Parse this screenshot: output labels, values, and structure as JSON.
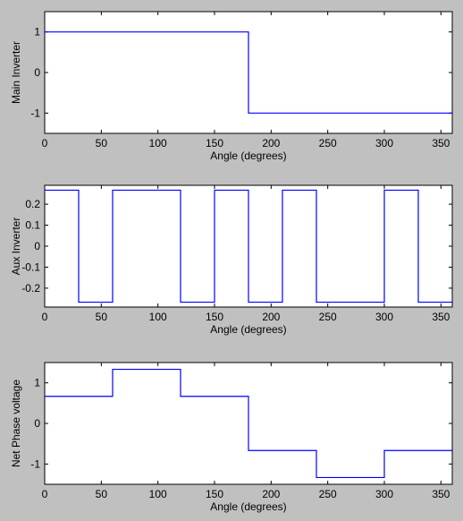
{
  "figure": {
    "background": "#c0c0c0",
    "axes_background": "#ffffff",
    "line_color": "#0000ff"
  },
  "chart_data": [
    {
      "type": "line",
      "step": true,
      "ylabel": "Main Inverter",
      "xlabel": "Angle (degrees)",
      "xlim": [
        0,
        360
      ],
      "ylim": [
        -1.5,
        1.5
      ],
      "xticks": [
        0,
        50,
        100,
        150,
        200,
        250,
        300,
        350
      ],
      "yticks": [
        1,
        0,
        -1
      ],
      "series": [
        {
          "x": [
            0,
            180,
            180,
            360
          ],
          "y": [
            1,
            1,
            -1,
            -1
          ]
        }
      ]
    },
    {
      "type": "line",
      "step": true,
      "ylabel": "Aux Inverter",
      "xlabel": "Angle (degrees)",
      "xlim": [
        0,
        360
      ],
      "ylim": [
        -0.29,
        0.29
      ],
      "xticks": [
        0,
        50,
        100,
        150,
        200,
        250,
        300,
        350
      ],
      "yticks": [
        "0.2",
        "0.1",
        "0",
        "-0.1",
        "-0.2"
      ],
      "series": [
        {
          "x": [
            0,
            30,
            30,
            60,
            60,
            120,
            120,
            150,
            150,
            180,
            180,
            210,
            210,
            240,
            240,
            300,
            300,
            330,
            330,
            360
          ],
          "y": [
            0.2667,
            0.2667,
            -0.2667,
            -0.2667,
            0.2667,
            0.2667,
            -0.2667,
            -0.2667,
            0.2667,
            0.2667,
            -0.2667,
            -0.2667,
            0.2667,
            0.2667,
            -0.2667,
            -0.2667,
            0.2667,
            0.2667,
            -0.2667,
            -0.2667
          ]
        }
      ]
    },
    {
      "type": "line",
      "step": true,
      "ylabel": "Net Phase voltage",
      "xlabel": "Angle (degrees)",
      "xlim": [
        0,
        360
      ],
      "ylim": [
        -1.5,
        1.5
      ],
      "xticks": [
        0,
        50,
        100,
        150,
        200,
        250,
        300,
        350
      ],
      "yticks": [
        1,
        0,
        -1
      ],
      "series": [
        {
          "x": [
            0,
            60,
            60,
            120,
            120,
            180,
            180,
            240,
            240,
            300,
            300,
            360
          ],
          "y": [
            0.667,
            0.667,
            1.333,
            1.333,
            0.667,
            0.667,
            -0.667,
            -0.667,
            -1.333,
            -1.333,
            -0.667,
            -0.667
          ]
        }
      ]
    }
  ]
}
